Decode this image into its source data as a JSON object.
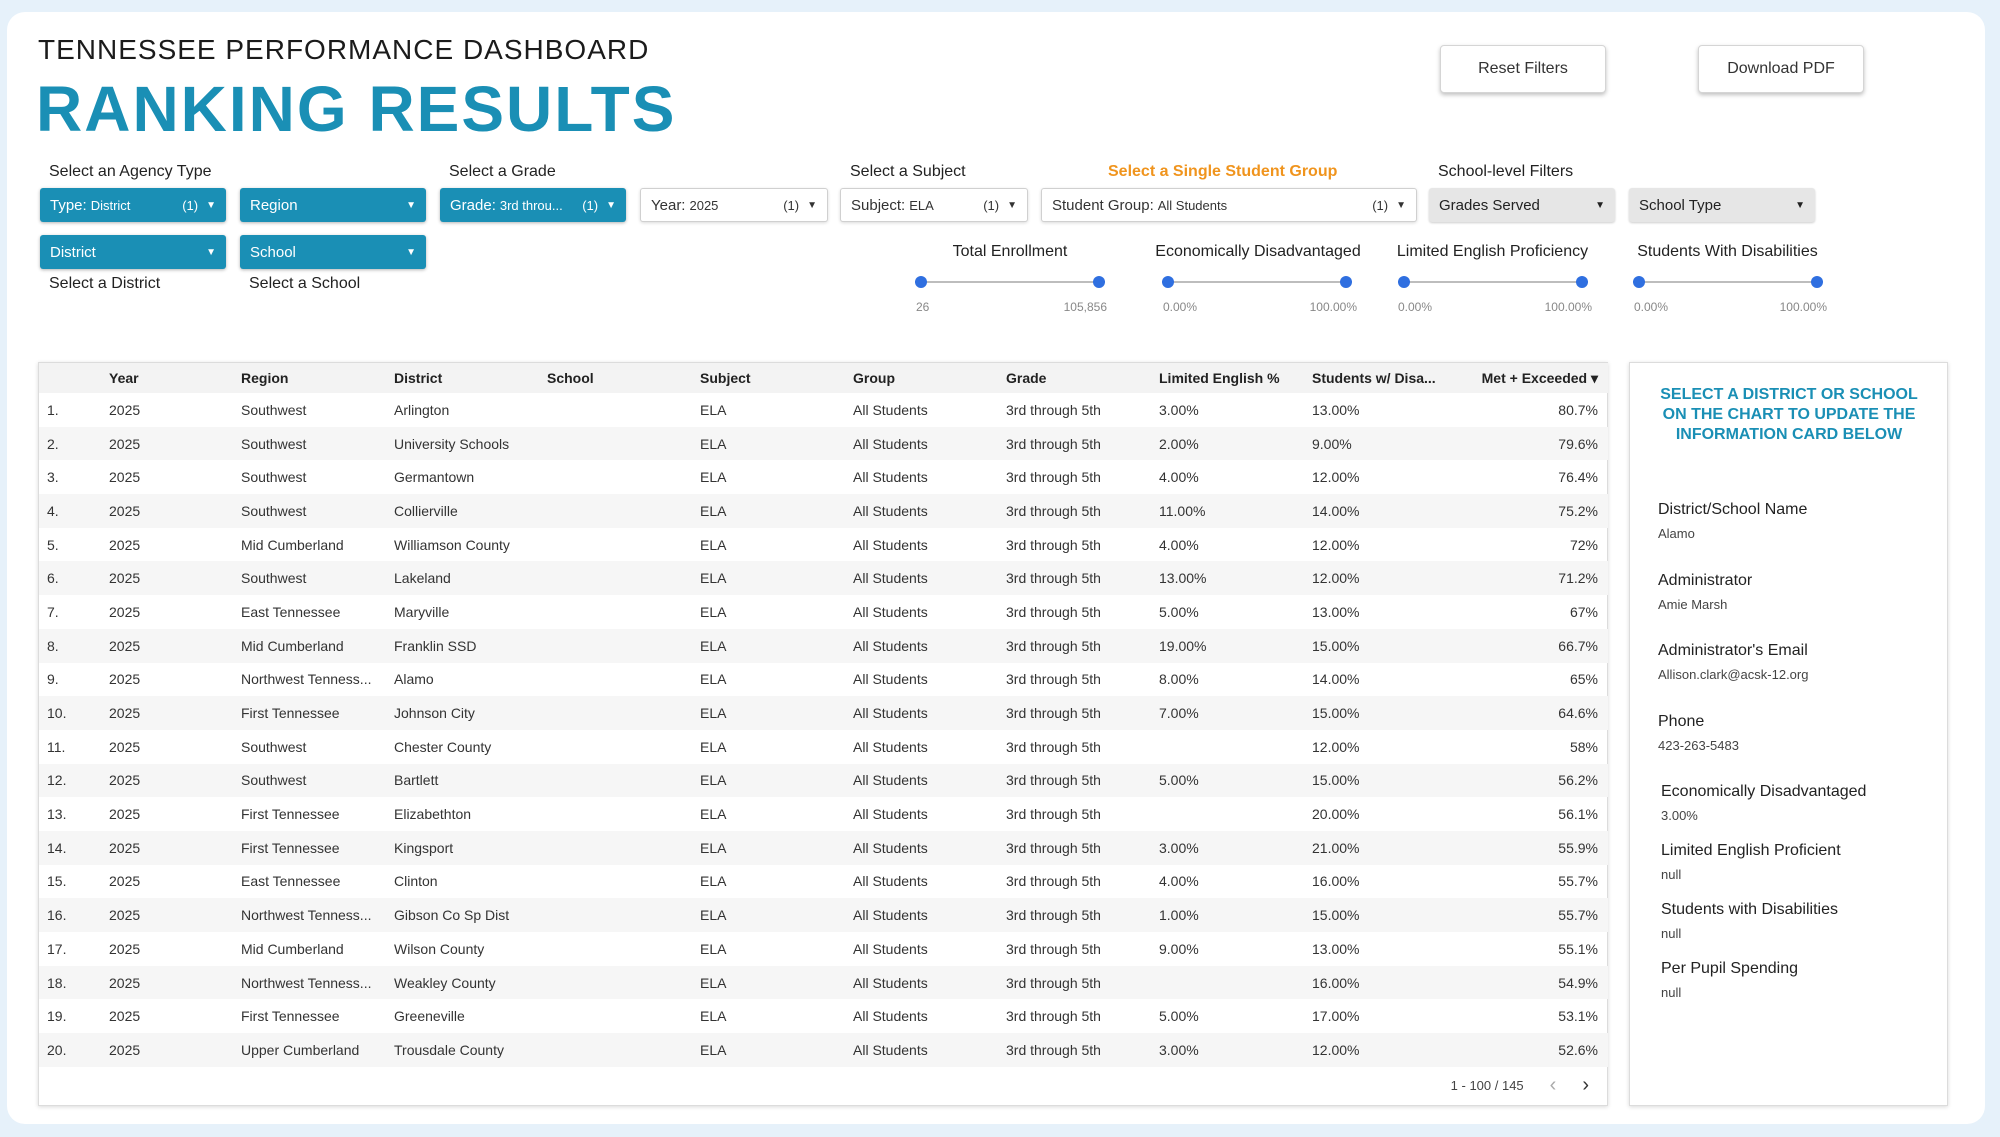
{
  "header": {
    "eyebrow": "TENNESSEE PERFORMANCE DASHBOARD",
    "title": "RANKING RESULTS",
    "reset_label": "Reset Filters",
    "download_label": "Download PDF"
  },
  "filters": {
    "agency_label": "Select an Agency Type",
    "grade_label": "Select a Grade",
    "subject_label": "Select a Subject",
    "group_label": "Select a Single Student Group",
    "school_level_label": "School-level Filters",
    "type_prefix": "Type:",
    "type_value": "District",
    "type_count": "(1)",
    "region": "Region",
    "grade_prefix": "Grade:",
    "grade_value": "3rd throu...",
    "grade_count": "(1)",
    "year_prefix": "Year:",
    "year_value": "2025",
    "year_count": "(1)",
    "subject_prefix": "Subject:",
    "subject_value": "ELA",
    "subject_count": "(1)",
    "group_prefix": "Student Group:",
    "group_value": "All Students",
    "group_count": "(1)",
    "grades_served": "Grades Served",
    "school_type": "School Type",
    "district": "District",
    "school": "School",
    "district_hint": "Select a District",
    "school_hint": "Select a School"
  },
  "sliders": [
    {
      "label": "Total Enrollment",
      "min": "26",
      "max": "105,856"
    },
    {
      "label": "Economically Disadvantaged",
      "min": "0.00%",
      "max": "100.00%"
    },
    {
      "label": "Limited English Proficiency",
      "min": "0.00%",
      "max": "100.00%"
    },
    {
      "label": "Students With Disabilities",
      "min": "0.00%",
      "max": "100.00%"
    }
  ],
  "table": {
    "headers": [
      "",
      "Year",
      "Region",
      "District",
      "School",
      "Subject",
      "Group",
      "Grade",
      "Limited English %",
      "Students w/ Disa...",
      "Met + Exceeded ▾"
    ],
    "rows": [
      [
        "1.",
        "2025",
        "Southwest",
        "Arlington",
        "",
        "ELA",
        "All Students",
        "3rd through 5th",
        "3.00%",
        "13.00%",
        "80.7%"
      ],
      [
        "2.",
        "2025",
        "Southwest",
        "University Schools",
        "",
        "ELA",
        "All Students",
        "3rd through 5th",
        "2.00%",
        "9.00%",
        "79.6%"
      ],
      [
        "3.",
        "2025",
        "Southwest",
        "Germantown",
        "",
        "ELA",
        "All Students",
        "3rd through 5th",
        "4.00%",
        "12.00%",
        "76.4%"
      ],
      [
        "4.",
        "2025",
        "Southwest",
        "Collierville",
        "",
        "ELA",
        "All Students",
        "3rd through 5th",
        "11.00%",
        "14.00%",
        "75.2%"
      ],
      [
        "5.",
        "2025",
        "Mid Cumberland",
        "Williamson County",
        "",
        "ELA",
        "All Students",
        "3rd through 5th",
        "4.00%",
        "12.00%",
        "72%"
      ],
      [
        "6.",
        "2025",
        "Southwest",
        "Lakeland",
        "",
        "ELA",
        "All Students",
        "3rd through 5th",
        "13.00%",
        "12.00%",
        "71.2%"
      ],
      [
        "7.",
        "2025",
        "East Tennessee",
        "Maryville",
        "",
        "ELA",
        "All Students",
        "3rd through 5th",
        "5.00%",
        "13.00%",
        "67%"
      ],
      [
        "8.",
        "2025",
        "Mid Cumberland",
        "Franklin SSD",
        "",
        "ELA",
        "All Students",
        "3rd through 5th",
        "19.00%",
        "15.00%",
        "66.7%"
      ],
      [
        "9.",
        "2025",
        "Northwest Tenness...",
        "Alamo",
        "",
        "ELA",
        "All Students",
        "3rd through 5th",
        "8.00%",
        "14.00%",
        "65%"
      ],
      [
        "10.",
        "2025",
        "First Tennessee",
        "Johnson City",
        "",
        "ELA",
        "All Students",
        "3rd through 5th",
        "7.00%",
        "15.00%",
        "64.6%"
      ],
      [
        "11.",
        "2025",
        "Southwest",
        "Chester County",
        "",
        "ELA",
        "All Students",
        "3rd through 5th",
        "",
        "12.00%",
        "58%"
      ],
      [
        "12.",
        "2025",
        "Southwest",
        "Bartlett",
        "",
        "ELA",
        "All Students",
        "3rd through 5th",
        "5.00%",
        "15.00%",
        "56.2%"
      ],
      [
        "13.",
        "2025",
        "First Tennessee",
        "Elizabethton",
        "",
        "ELA",
        "All Students",
        "3rd through 5th",
        "",
        "20.00%",
        "56.1%"
      ],
      [
        "14.",
        "2025",
        "First Tennessee",
        "Kingsport",
        "",
        "ELA",
        "All Students",
        "3rd through 5th",
        "3.00%",
        "21.00%",
        "55.9%"
      ],
      [
        "15.",
        "2025",
        "East Tennessee",
        "Clinton",
        "",
        "ELA",
        "All Students",
        "3rd through 5th",
        "4.00%",
        "16.00%",
        "55.7%"
      ],
      [
        "16.",
        "2025",
        "Northwest Tenness...",
        "Gibson Co Sp Dist",
        "",
        "ELA",
        "All Students",
        "3rd through 5th",
        "1.00%",
        "15.00%",
        "55.7%"
      ],
      [
        "17.",
        "2025",
        "Mid Cumberland",
        "Wilson County",
        "",
        "ELA",
        "All Students",
        "3rd through 5th",
        "9.00%",
        "13.00%",
        "55.1%"
      ],
      [
        "18.",
        "2025",
        "Northwest Tenness...",
        "Weakley County",
        "",
        "ELA",
        "All Students",
        "3rd through 5th",
        "",
        "16.00%",
        "54.9%"
      ],
      [
        "19.",
        "2025",
        "First Tennessee",
        "Greeneville",
        "",
        "ELA",
        "All Students",
        "3rd through 5th",
        "5.00%",
        "17.00%",
        "53.1%"
      ],
      [
        "20.",
        "2025",
        "Upper Cumberland",
        "Trousdale County",
        "",
        "ELA",
        "All Students",
        "3rd through 5th",
        "3.00%",
        "12.00%",
        "52.6%"
      ]
    ],
    "pagination": "1 - 100 / 145"
  },
  "info_card": {
    "prompt": "SELECT A DISTRICT OR SCHOOL ON THE CHART TO UPDATE THE INFORMATION CARD BELOW",
    "fields": [
      {
        "label": "District/School Name",
        "value": "Alamo"
      },
      {
        "label": "Administrator",
        "value": "Amie Marsh"
      },
      {
        "label": "Administrator's Email",
        "value": "Allison.clark@acsk-12.org"
      },
      {
        "label": "Phone",
        "value": "423-263-5483"
      },
      {
        "label": "Economically Disadvantaged",
        "value": "3.00%"
      },
      {
        "label": "Limited English Proficient",
        "value": "null"
      },
      {
        "label": "Students with Disabilities",
        "value": "null"
      },
      {
        "label": "Per Pupil Spending",
        "value": "null"
      }
    ]
  },
  "colors": {
    "accent": "#1a8fb5",
    "highlight": "#f0941d",
    "slider_knob": "#2f6fe0"
  }
}
